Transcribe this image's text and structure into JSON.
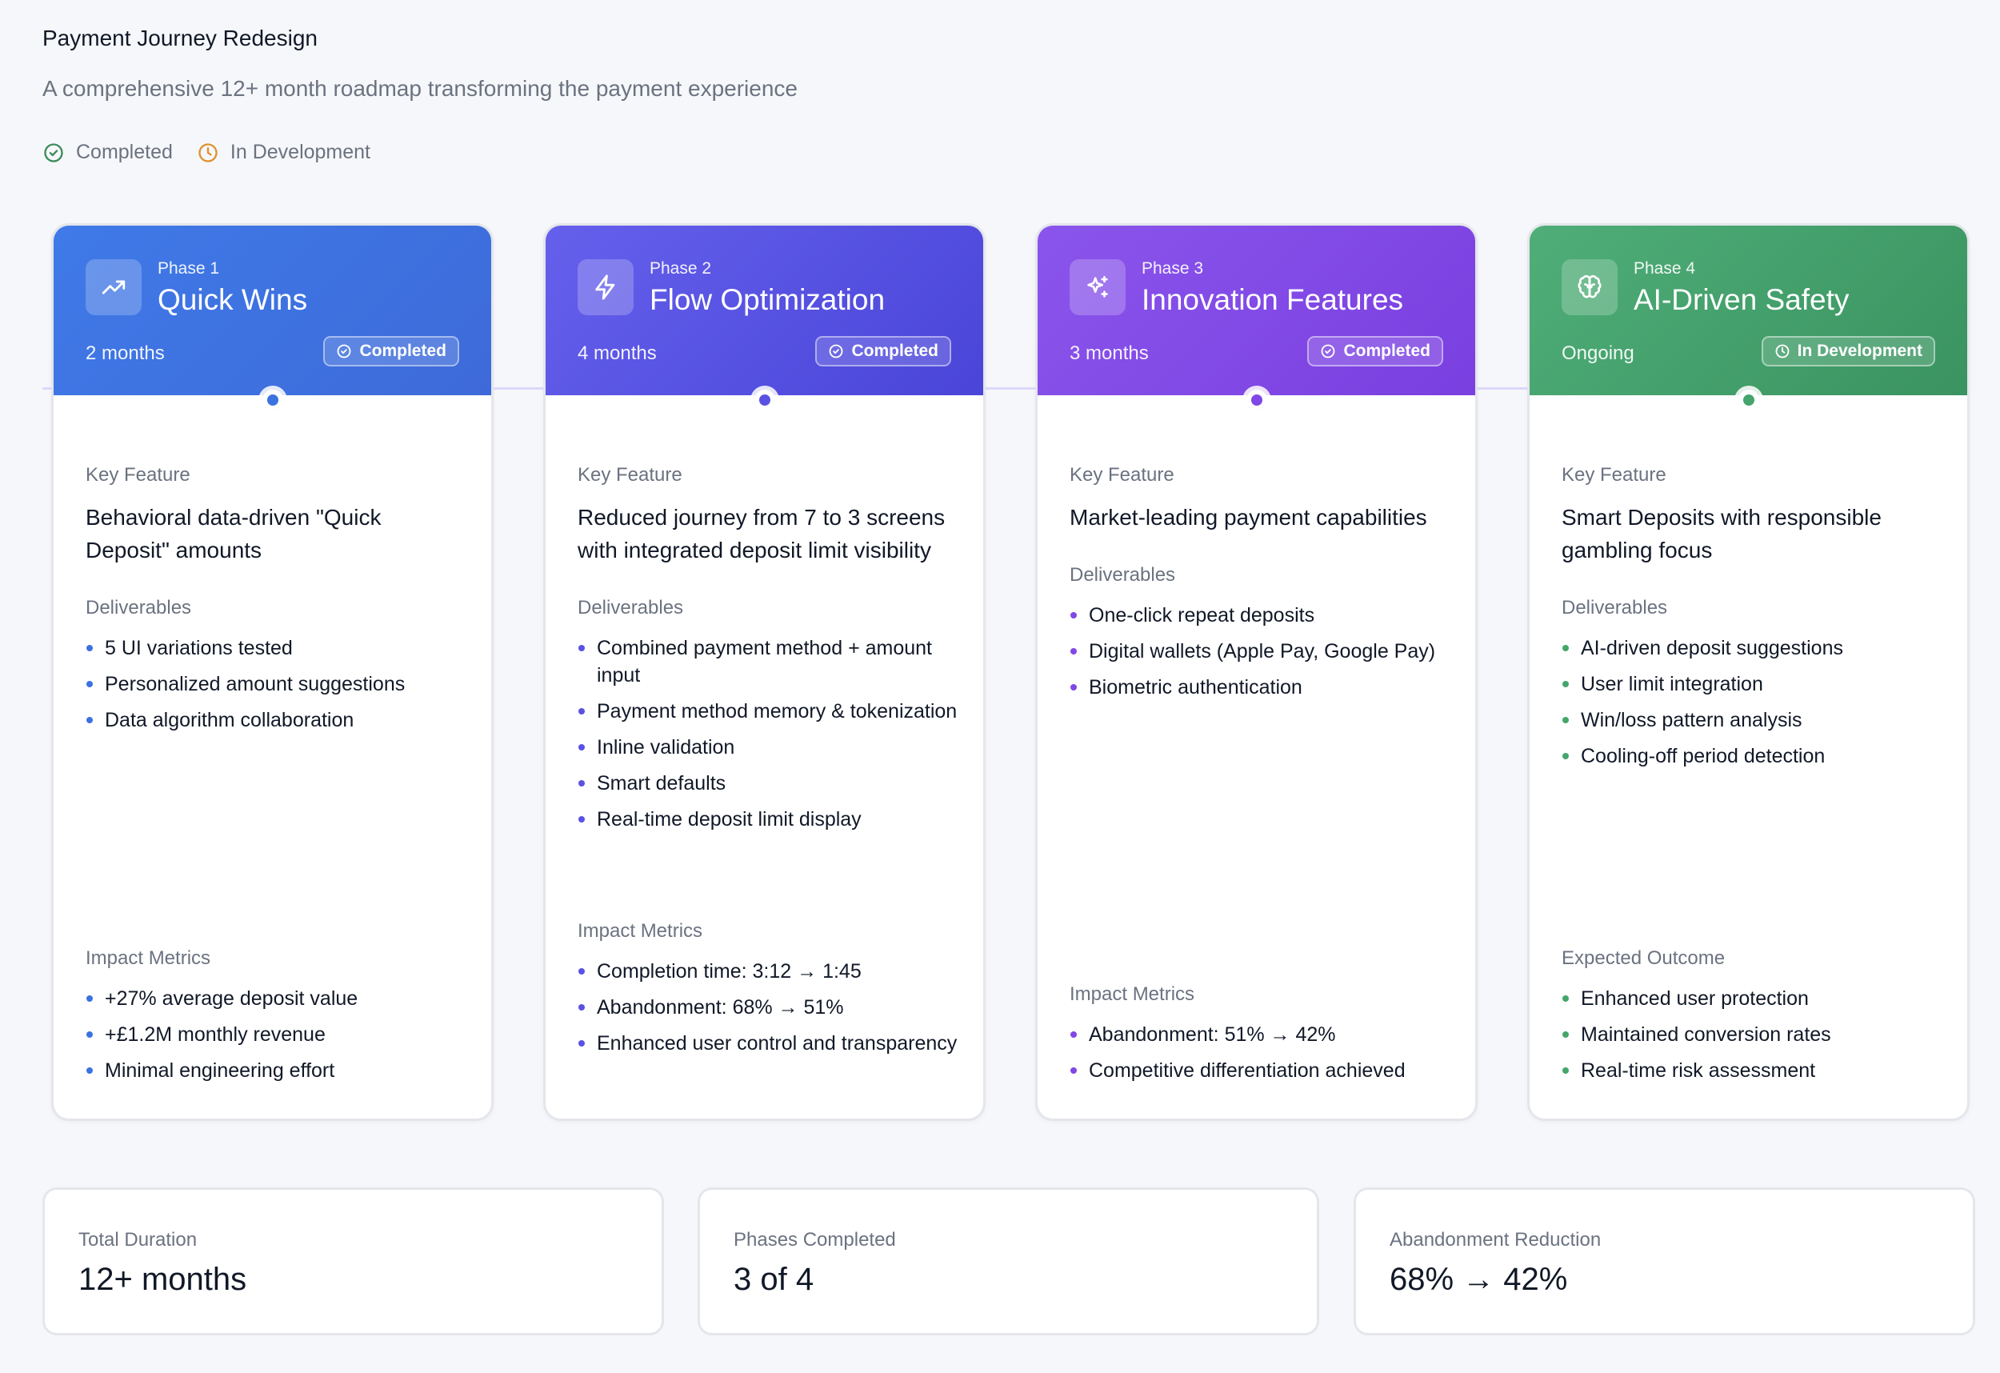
{
  "header": {
    "title": "Payment Journey Redesign",
    "subtitle": "A comprehensive 12+ month roadmap transforming the payment experience"
  },
  "legend": {
    "completed": "Completed",
    "in_development": "In Development",
    "completed_color": "#3b8c5a",
    "in_development_color": "#e0902f"
  },
  "phases": [
    {
      "phase": "Phase 1",
      "title": "Quick Wins",
      "duration": "2 months",
      "status": "Completed",
      "icon": "trending-up-icon",
      "gradient": [
        "#3f7ae8",
        "#3e6ad9"
      ],
      "accent": "#3b72e0",
      "key_feature_label": "Key Feature",
      "key_feature": "Behavioral data-driven \"Quick Deposit\" amounts",
      "deliverables_label": "Deliverables",
      "deliverables": [
        "5 UI variations tested",
        "Personalized amount suggestions",
        "Data algorithm collaboration"
      ],
      "metrics_label": "Impact Metrics",
      "metrics": [
        "+27% average deposit value",
        "+£1.2M monthly revenue",
        "Minimal engineering effort"
      ]
    },
    {
      "phase": "Phase 2",
      "title": "Flow Optimization",
      "duration": "4 months",
      "status": "Completed",
      "icon": "lightning-icon",
      "gradient": [
        "#6560ec",
        "#4a45d8"
      ],
      "accent": "#5a52e3",
      "key_feature_label": "Key Feature",
      "key_feature": "Reduced journey from 7 to 3 screens with integrated deposit limit visibility",
      "deliverables_label": "Deliverables",
      "deliverables": [
        "Combined payment method + amount input",
        "Payment method memory & tokenization",
        "Inline validation",
        "Smart defaults",
        "Real-time deposit limit display"
      ],
      "metrics_label": "Impact Metrics",
      "metrics": [
        "Completion time: 3:12 → 1:45",
        "Abandonment: 68% → 51%",
        "Enhanced user control and transparency"
      ]
    },
    {
      "phase": "Phase 3",
      "title": "Innovation Features",
      "duration": "3 months",
      "status": "Completed",
      "icon": "sparkles-icon",
      "gradient": [
        "#8a55ec",
        "#7a3fe0"
      ],
      "accent": "#8048e6",
      "key_feature_label": "Key Feature",
      "key_feature": "Market-leading payment capabilities",
      "deliverables_label": "Deliverables",
      "deliverables": [
        "One-click repeat deposits",
        "Digital wallets (Apple Pay, Google Pay)",
        "Biometric authentication"
      ],
      "metrics_label": "Impact Metrics",
      "metrics": [
        "Abandonment: 51% → 42%",
        "Competitive differentiation achieved"
      ]
    },
    {
      "phase": "Phase 4",
      "title": "AI-Driven Safety",
      "duration": "Ongoing",
      "status": "In Development",
      "icon": "brain-icon",
      "gradient": [
        "#4fae78",
        "#3a9360"
      ],
      "accent": "#45a56c",
      "key_feature_label": "Key Feature",
      "key_feature": "Smart Deposits with responsible gambling focus",
      "deliverables_label": "Deliverables",
      "deliverables": [
        "AI-driven deposit suggestions",
        "User limit integration",
        "Win/loss pattern analysis",
        "Cooling-off period detection"
      ],
      "metrics_label": "Expected Outcome",
      "metrics": [
        "Enhanced user protection",
        "Maintained conversion rates",
        "Real-time risk assessment"
      ]
    }
  ],
  "stats": [
    {
      "label": "Total Duration",
      "value": "12+ months"
    },
    {
      "label": "Phases Completed",
      "value": "3 of 4"
    },
    {
      "label": "Abandonment Reduction",
      "value": "68% → 42%"
    }
  ]
}
